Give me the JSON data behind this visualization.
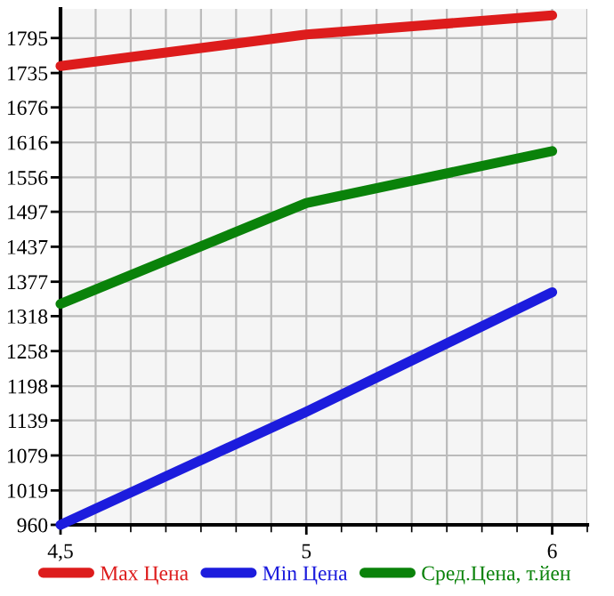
{
  "chart_data": {
    "type": "line",
    "categories": [
      "4,5",
      "5",
      "6"
    ],
    "series": [
      {
        "name": "Max Цена",
        "color": "#dd1c1c",
        "values": [
          1747,
          1801,
          1834
        ]
      },
      {
        "name": "Min Цена",
        "color": "#1c1cdd",
        "values": [
          960,
          1154,
          1359
        ]
      },
      {
        "name": "Сред.Цена, т.йен",
        "color": "#0a820a",
        "values": [
          1339,
          1512,
          1601
        ]
      }
    ],
    "ylim": [
      960,
      1845
    ],
    "yticks": [
      960,
      1019,
      1079,
      1139,
      1198,
      1258,
      1318,
      1377,
      1437,
      1497,
      1556,
      1616,
      1676,
      1735,
      1795
    ],
    "grid": true,
    "legend": "bottom",
    "marker": "none",
    "line_style": "solid"
  }
}
